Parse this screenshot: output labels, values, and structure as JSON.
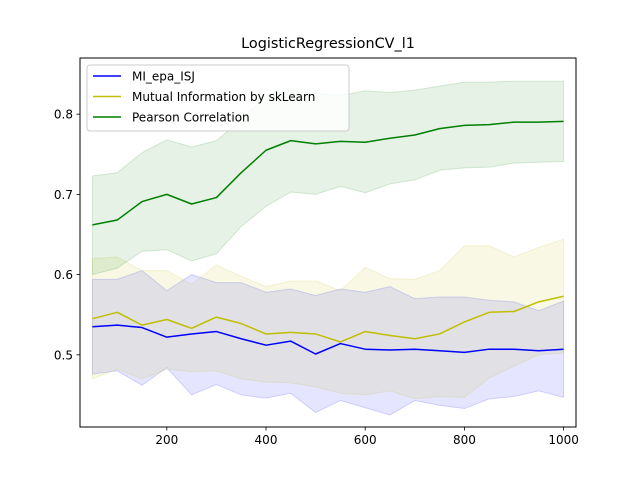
{
  "chart_data": {
    "type": "line",
    "title": "LogisticRegressionCV_l1",
    "xlabel": "",
    "ylabel": "",
    "xlim": [
      25,
      1025
    ],
    "ylim": [
      0.41,
      0.87
    ],
    "xticks": [
      200,
      400,
      600,
      800,
      1000
    ],
    "yticks": [
      0.5,
      0.6,
      0.7,
      0.8
    ],
    "grid": false,
    "legend_position": "top-left",
    "x": [
      50,
      100,
      150,
      200,
      250,
      300,
      350,
      400,
      450,
      500,
      550,
      600,
      650,
      700,
      750,
      800,
      850,
      900,
      950,
      1000
    ],
    "series": [
      {
        "name": "MI_epa_ISJ",
        "color": "#0000ff",
        "values": [
          0.535,
          0.537,
          0.534,
          0.522,
          0.526,
          0.529,
          0.52,
          0.512,
          0.517,
          0.501,
          0.514,
          0.507,
          0.506,
          0.507,
          0.505,
          0.503,
          0.507,
          0.507,
          0.505,
          0.507
        ],
        "lower": [
          0.476,
          0.48,
          0.462,
          0.484,
          0.45,
          0.463,
          0.45,
          0.446,
          0.452,
          0.428,
          0.443,
          0.434,
          0.425,
          0.443,
          0.437,
          0.433,
          0.445,
          0.448,
          0.455,
          0.447
        ],
        "upper": [
          0.594,
          0.594,
          0.605,
          0.58,
          0.6,
          0.59,
          0.59,
          0.578,
          0.582,
          0.574,
          0.582,
          0.578,
          0.585,
          0.57,
          0.572,
          0.572,
          0.568,
          0.566,
          0.555,
          0.567
        ]
      },
      {
        "name": "Mutual Information by skLearn",
        "color": "#bfbf00",
        "values": [
          0.545,
          0.553,
          0.537,
          0.544,
          0.533,
          0.547,
          0.539,
          0.526,
          0.528,
          0.526,
          0.516,
          0.529,
          0.524,
          0.52,
          0.526,
          0.541,
          0.553,
          0.554,
          0.566,
          0.573
        ],
        "lower": [
          0.47,
          0.482,
          0.47,
          0.482,
          0.479,
          0.48,
          0.47,
          0.466,
          0.465,
          0.46,
          0.452,
          0.45,
          0.455,
          0.445,
          0.448,
          0.447,
          0.471,
          0.486,
          0.5,
          0.502
        ],
        "upper": [
          0.62,
          0.622,
          0.605,
          0.605,
          0.588,
          0.612,
          0.598,
          0.585,
          0.592,
          0.592,
          0.58,
          0.609,
          0.595,
          0.594,
          0.605,
          0.636,
          0.636,
          0.622,
          0.634,
          0.644
        ]
      },
      {
        "name": "Pearson Correlation",
        "color": "#008000",
        "values": [
          0.662,
          0.668,
          0.691,
          0.7,
          0.688,
          0.696,
          0.727,
          0.755,
          0.767,
          0.763,
          0.766,
          0.765,
          0.77,
          0.774,
          0.782,
          0.786,
          0.787,
          0.79,
          0.79,
          0.791
        ],
        "lower": [
          0.6,
          0.608,
          0.629,
          0.631,
          0.617,
          0.626,
          0.66,
          0.685,
          0.703,
          0.7,
          0.71,
          0.702,
          0.713,
          0.718,
          0.73,
          0.733,
          0.734,
          0.739,
          0.74,
          0.741
        ],
        "upper": [
          0.723,
          0.727,
          0.752,
          0.768,
          0.759,
          0.767,
          0.793,
          0.823,
          0.83,
          0.826,
          0.823,
          0.829,
          0.827,
          0.83,
          0.835,
          0.84,
          0.84,
          0.841,
          0.841,
          0.841
        ]
      }
    ]
  }
}
